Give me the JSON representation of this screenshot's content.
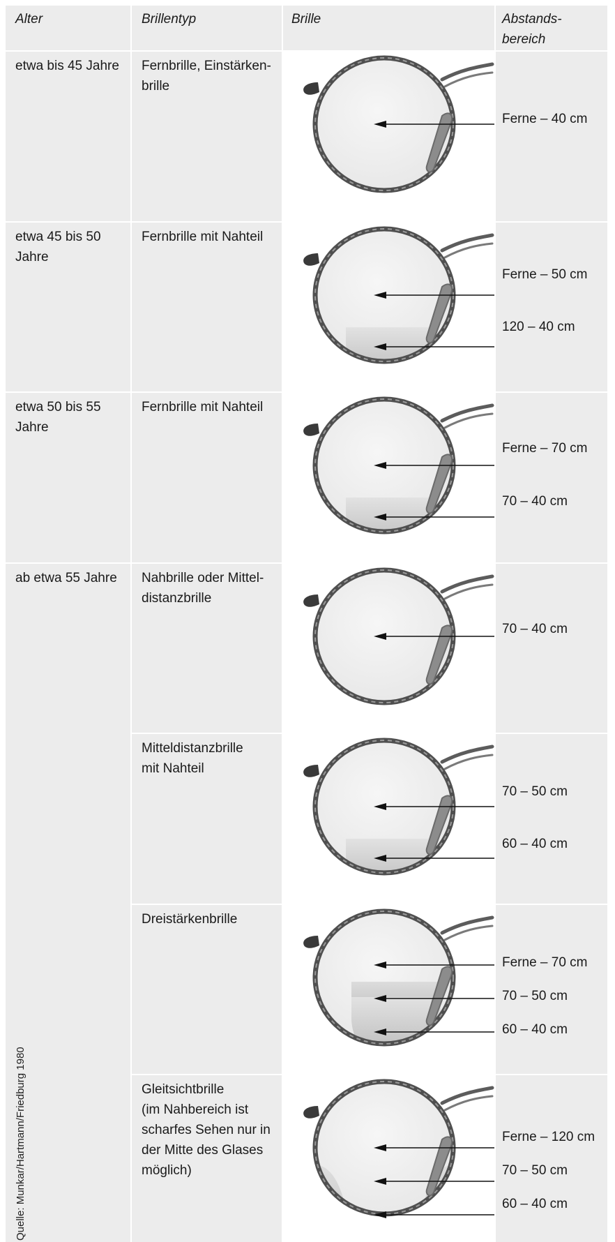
{
  "headers": {
    "alter": "Alter",
    "typ": "Brillentyp",
    "brille": "Brille",
    "abstand_1": "Abstands-",
    "abstand_2": "bereich"
  },
  "rows": [
    {
      "alter": [
        "etwa bis 45 Jahre"
      ],
      "typ": [
        "Fernbrille, Einstärken-",
        "brille"
      ],
      "zones": [
        "Ferne – 40 cm"
      ]
    },
    {
      "alter": [
        "etwa 45 bis 50",
        "Jahre"
      ],
      "typ": [
        "Fernbrille mit Nahteil"
      ],
      "zones": [
        "Ferne – 50 cm",
        "120 – 40 cm"
      ]
    },
    {
      "alter": [
        "etwa 50 bis 55",
        "Jahre"
      ],
      "typ": [
        "Fernbrille mit Nahteil"
      ],
      "zones": [
        "Ferne – 70 cm",
        "70 – 40 cm"
      ]
    },
    {
      "alter": [
        "ab etwa 55 Jahre"
      ],
      "typ": [
        "Nahbrille oder Mittel-",
        "distanzbrille"
      ],
      "zones": [
        "70 – 40 cm"
      ]
    },
    {
      "typ": [
        "Mitteldistanzbrille",
        "mit Nahteil"
      ],
      "zones": [
        "70 – 50 cm",
        "60 – 40 cm"
      ]
    },
    {
      "typ": [
        "Dreistärkenbrille"
      ],
      "zones": [
        "Ferne – 70 cm",
        "70 – 50 cm",
        "60 – 40 cm"
      ]
    },
    {
      "typ": [
        "Gleitsichtbrille",
        "(im Nahbereich ist",
        "scharfes Sehen nur in",
        "der Mitte des Glases",
        "möglich)"
      ],
      "zones": [
        "Ferne – 120 cm",
        "70 – 50 cm",
        "60 – 40 cm"
      ]
    }
  ],
  "source": "Quelle: Munkar/Hartmann/Friedburg 1980"
}
